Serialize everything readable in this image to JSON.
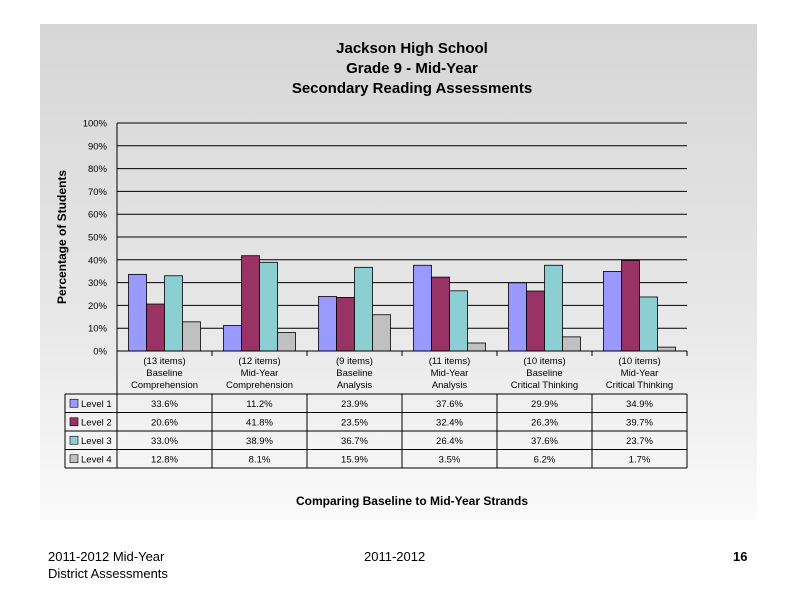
{
  "chart_data": {
    "type": "bar",
    "title": [
      "Jackson High School",
      "Grade 9 - Mid-Year",
      "Secondary Reading Assessments"
    ],
    "ylabel": "Percentage of Students",
    "xlabel": "Comparing Baseline to Mid-Year Strands",
    "ylim": [
      0,
      100
    ],
    "yticks": [
      "0%",
      "10%",
      "20%",
      "30%",
      "40%",
      "50%",
      "60%",
      "70%",
      "80%",
      "90%",
      "100%"
    ],
    "grid": true,
    "legend": "data table rows",
    "categories": [
      [
        "(13 items)",
        "Baseline",
        "Comprehension"
      ],
      [
        "(12 items)",
        "Mid-Year",
        "Comprehension"
      ],
      [
        "(9 items)",
        "Baseline",
        "Analysis"
      ],
      [
        "(11 items)",
        "Mid-Year",
        "Analysis"
      ],
      [
        "(10 items)",
        "Baseline",
        "Critical Thinking"
      ],
      [
        "(10 items)",
        "Mid-Year",
        "Critical Thinking"
      ]
    ],
    "series": [
      {
        "name": "Level 1",
        "color": "#9999ff",
        "values": [
          33.6,
          11.2,
          23.9,
          37.6,
          29.9,
          34.9
        ],
        "labels": [
          "33.6%",
          "11.2%",
          "23.9%",
          "37.6%",
          "29.9%",
          "34.9%"
        ]
      },
      {
        "name": "Level 2",
        "color": "#993366",
        "values": [
          20.6,
          41.8,
          23.5,
          32.4,
          26.3,
          39.7
        ],
        "labels": [
          "20.6%",
          "41.8%",
          "23.5%",
          "32.4%",
          "26.3%",
          "39.7%"
        ]
      },
      {
        "name": "Level 3",
        "color": "#8ccfd2",
        "values": [
          33.0,
          38.9,
          36.7,
          26.4,
          37.6,
          23.7
        ],
        "labels": [
          "33.0%",
          "38.9%",
          "36.7%",
          "26.4%",
          "37.6%",
          "23.7%"
        ]
      },
      {
        "name": "Level 4",
        "color": "#c0c0c0",
        "values": [
          12.8,
          8.1,
          15.9,
          3.5,
          6.2,
          1.7
        ],
        "labels": [
          "12.8%",
          "8.1%",
          "15.9%",
          "3.5%",
          "6.2%",
          "1.7%"
        ]
      }
    ]
  },
  "footer": {
    "left_line1": "2011-2012  Mid-Year",
    "left_line2": "District Assessments",
    "center": "2011-2012",
    "page_number": "16"
  }
}
